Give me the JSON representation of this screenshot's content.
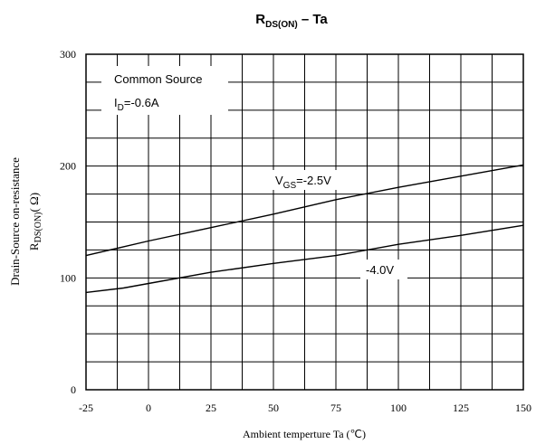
{
  "chart_data": {
    "type": "line",
    "title": {
      "main": "R",
      "sub": "DS(ON)",
      "rest": " – Ta"
    },
    "xlabel": "Ambient temperture  Ta (℃)",
    "ylabel": {
      "line1": "Drain-Source on-resistance",
      "line2_main": "R",
      "line2_sub": "DS(ON)",
      "line2_rest": "( Ω)"
    },
    "xlim": [
      -25,
      150
    ],
    "ylim": [
      0,
      300
    ],
    "x_ticks": [
      "-25",
      "0",
      "25",
      "50",
      "75",
      "100",
      "125",
      "150"
    ],
    "y_ticks": [
      "0",
      "100",
      "200",
      "300"
    ],
    "grid": true,
    "annotations": {
      "condition_line1": "Common Source",
      "condition_line2_main": "I",
      "condition_line2_sub": "D",
      "condition_line2_rest": "=-0.6A",
      "vgs1_main": "V",
      "vgs1_sub": "GS",
      "vgs1_rest": "=-2.5V",
      "vgs2": "-4.0V"
    },
    "series": [
      {
        "name": "VGS=-2.5V",
        "x": [
          -25,
          0,
          25,
          50,
          75,
          100,
          125,
          150
        ],
        "y": [
          120,
          133,
          145,
          157,
          170,
          181,
          191,
          201
        ]
      },
      {
        "name": "VGS=-4.0V",
        "x": [
          -25,
          -10,
          0,
          25,
          50,
          75,
          100,
          125,
          150
        ],
        "y": [
          87,
          91,
          95,
          105,
          113,
          120,
          130,
          138,
          147
        ]
      }
    ]
  }
}
